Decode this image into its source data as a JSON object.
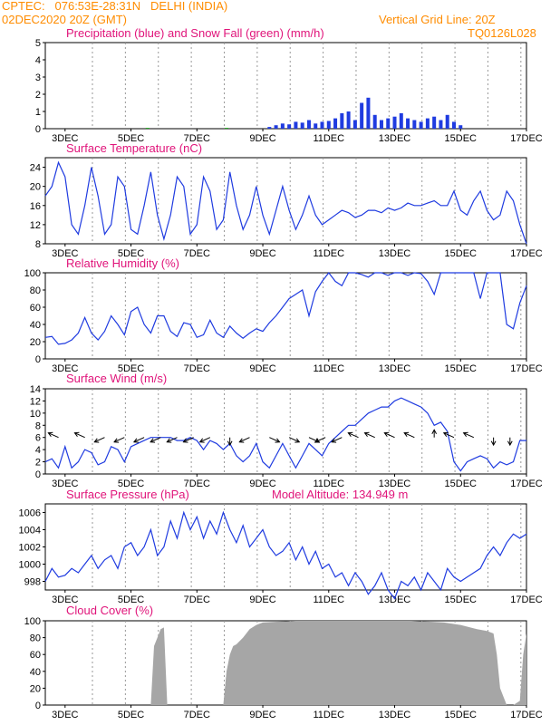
{
  "header": {
    "line1": "CPTEC:   076:53E-28:31N   DELHI (INDIA)",
    "line2": "02DEC2020 20Z (GMT)",
    "grid_note": "Vertical Grid Line: 20Z",
    "code": "TQ0126L028"
  },
  "colors": {
    "header": "#ff8c00",
    "title": "#e0147a",
    "series": "#1f3be0",
    "snow": "#22aa22",
    "cloud": "#a6a6a6",
    "wind_arrow": "#000000"
  },
  "x_tick_labels": [
    "3DEC",
    "5DEC",
    "7DEC",
    "9DEC",
    "11DEC",
    "13DEC",
    "15DEC",
    "17DEC"
  ],
  "chart_data": [
    {
      "type": "bar",
      "title": "Precipitation (blue) and Snow Fall (green) (mm/h)",
      "x_range_days": [
        2.4,
        17.0
      ],
      "ylim": [
        0,
        5
      ],
      "yticks": [
        0,
        1,
        2,
        3,
        4,
        5
      ],
      "series": [
        {
          "name": "Precipitation",
          "x": [
            9.2,
            9.4,
            9.6,
            9.8,
            10.0,
            10.2,
            10.4,
            10.6,
            10.8,
            11.0,
            11.2,
            11.4,
            11.6,
            11.8,
            12.0,
            12.2,
            12.4,
            12.6,
            12.8,
            13.0,
            13.2,
            13.4,
            13.6,
            13.8,
            14.0,
            14.2,
            14.4,
            14.6,
            14.8,
            15.0
          ],
          "values": [
            0.1,
            0.2,
            0.3,
            0.25,
            0.4,
            0.35,
            0.5,
            0.3,
            0.4,
            0.45,
            0.6,
            0.9,
            1.0,
            0.5,
            1.5,
            1.8,
            0.8,
            0.5,
            0.6,
            0.7,
            0.9,
            0.6,
            0.5,
            0.4,
            0.6,
            0.7,
            0.5,
            0.8,
            0.4,
            0.2
          ]
        },
        {
          "name": "Snow Fall",
          "x": [
            5.5,
            7.9
          ],
          "values": [
            0.05,
            0.05
          ]
        }
      ]
    },
    {
      "type": "line",
      "title": "Surface Temperature (nC)",
      "ylim": [
        8,
        26
      ],
      "yticks": [
        8,
        12,
        16,
        20,
        24
      ],
      "x": [
        2.4,
        2.6,
        2.8,
        3.0,
        3.2,
        3.4,
        3.6,
        3.8,
        4.0,
        4.2,
        4.4,
        4.6,
        4.8,
        5.0,
        5.2,
        5.4,
        5.6,
        5.8,
        6.0,
        6.2,
        6.4,
        6.6,
        6.8,
        7.0,
        7.2,
        7.4,
        7.6,
        7.8,
        8.0,
        8.2,
        8.4,
        8.6,
        8.8,
        9.0,
        9.2,
        9.4,
        9.6,
        9.8,
        10.0,
        10.2,
        10.4,
        10.6,
        10.8,
        11.0,
        11.2,
        11.4,
        11.6,
        11.8,
        12.0,
        12.2,
        12.4,
        12.6,
        12.8,
        13.0,
        13.2,
        13.4,
        13.6,
        13.8,
        14.0,
        14.2,
        14.4,
        14.6,
        14.8,
        15.0,
        15.2,
        15.4,
        15.6,
        15.8,
        16.0,
        16.2,
        16.4,
        16.6,
        16.8,
        17.0
      ],
      "values": [
        18,
        20,
        25,
        22,
        12,
        10,
        16,
        24,
        18,
        10,
        12,
        22,
        20,
        11,
        10,
        16,
        23,
        14,
        9,
        14,
        22,
        20,
        10,
        12,
        22,
        19,
        11,
        13,
        23,
        16,
        11,
        14,
        20,
        14,
        10,
        15,
        20,
        15,
        11,
        14,
        18,
        14,
        12,
        13,
        14,
        15,
        14.5,
        13.5,
        14,
        15,
        15,
        14.5,
        15.5,
        15,
        15.5,
        16.5,
        16,
        16,
        16.5,
        17,
        16,
        16,
        19,
        15,
        14,
        17,
        19,
        15,
        13,
        14,
        19,
        17,
        12,
        8
      ]
    },
    {
      "type": "line",
      "title": "Relative Humidity (%)",
      "ylim": [
        0,
        100
      ],
      "yticks": [
        0,
        20,
        40,
        60,
        80,
        100
      ],
      "x": [
        2.4,
        2.6,
        2.8,
        3.0,
        3.2,
        3.4,
        3.6,
        3.8,
        4.0,
        4.2,
        4.4,
        4.6,
        4.8,
        5.0,
        5.2,
        5.4,
        5.6,
        5.8,
        6.0,
        6.2,
        6.4,
        6.6,
        6.8,
        7.0,
        7.2,
        7.4,
        7.6,
        7.8,
        8.0,
        8.2,
        8.4,
        8.6,
        8.8,
        9.0,
        9.2,
        9.4,
        9.6,
        9.8,
        10.0,
        10.2,
        10.4,
        10.6,
        10.8,
        11.0,
        11.2,
        11.4,
        11.6,
        11.8,
        12.0,
        12.2,
        12.4,
        12.6,
        12.8,
        13.0,
        13.2,
        13.4,
        13.6,
        13.8,
        14.0,
        14.2,
        14.4,
        14.6,
        14.8,
        15.0,
        15.2,
        15.4,
        15.6,
        15.8,
        16.0,
        16.2,
        16.4,
        16.6,
        16.8,
        17.0
      ],
      "values": [
        25,
        26,
        17,
        18,
        22,
        30,
        48,
        30,
        22,
        32,
        50,
        40,
        28,
        55,
        60,
        40,
        30,
        50,
        50,
        32,
        26,
        42,
        40,
        25,
        28,
        45,
        30,
        25,
        38,
        30,
        24,
        30,
        35,
        32,
        42,
        50,
        60,
        70,
        75,
        80,
        50,
        78,
        90,
        100,
        90,
        85,
        100,
        100,
        98,
        95,
        100,
        100,
        97,
        100,
        100,
        97,
        100,
        99,
        90,
        75,
        100,
        100,
        100,
        100,
        100,
        100,
        70,
        100,
        100,
        100,
        40,
        35,
        65,
        85
      ]
    },
    {
      "type": "line",
      "title": "Surface Wind (m/s)",
      "ylim": [
        0,
        14
      ],
      "yticks": [
        0,
        2,
        4,
        6,
        8,
        10,
        12,
        14
      ],
      "x": [
        2.4,
        2.6,
        2.8,
        3.0,
        3.2,
        3.4,
        3.6,
        3.8,
        4.0,
        4.2,
        4.4,
        4.6,
        4.8,
        5.0,
        5.2,
        5.4,
        5.6,
        5.8,
        6.0,
        6.2,
        6.4,
        6.6,
        6.8,
        7.0,
        7.2,
        7.4,
        7.6,
        7.8,
        8.0,
        8.2,
        8.4,
        8.6,
        8.8,
        9.0,
        9.2,
        9.4,
        9.6,
        9.8,
        10.0,
        10.2,
        10.4,
        10.6,
        10.8,
        11.0,
        11.2,
        11.4,
        11.6,
        11.8,
        12.0,
        12.2,
        12.4,
        12.6,
        12.8,
        13.0,
        13.2,
        13.4,
        13.6,
        13.8,
        14.0,
        14.2,
        14.4,
        14.6,
        14.8,
        15.0,
        15.2,
        15.4,
        15.6,
        15.8,
        16.0,
        16.2,
        16.4,
        16.6,
        16.8,
        17.0
      ],
      "values": [
        2,
        2.5,
        1,
        4.5,
        1,
        2,
        4,
        3.5,
        1.5,
        2,
        4.5,
        4,
        2,
        4.5,
        5,
        5.5,
        6,
        6,
        6,
        6,
        5.5,
        5.5,
        6,
        5.5,
        4,
        5.5,
        5,
        4,
        5,
        3,
        2,
        3,
        5,
        2,
        1,
        3,
        5,
        3,
        1,
        3,
        5,
        4,
        3,
        5,
        6,
        7,
        8,
        8,
        9,
        10,
        10.5,
        11,
        11,
        12,
        12.5,
        12,
        11.5,
        11,
        10,
        8,
        8.5,
        7,
        2,
        0.5,
        2,
        2.5,
        3,
        2.5,
        1,
        2,
        1.5,
        2,
        5.5,
        5.5
      ],
      "wind_barbs": [
        {
          "x": 2.8,
          "dir": "nw"
        },
        {
          "x": 3.6,
          "dir": "nw"
        },
        {
          "x": 4.2,
          "dir": "sw"
        },
        {
          "x": 4.8,
          "dir": "sw"
        },
        {
          "x": 5.4,
          "dir": "sw"
        },
        {
          "x": 5.9,
          "dir": "sw"
        },
        {
          "x": 6.4,
          "dir": "sw"
        },
        {
          "x": 6.9,
          "dir": "sw"
        },
        {
          "x": 7.4,
          "dir": "sw"
        },
        {
          "x": 8.0,
          "dir": "s"
        },
        {
          "x": 8.6,
          "dir": "sw"
        },
        {
          "x": 9.2,
          "dir": "se"
        },
        {
          "x": 9.8,
          "dir": "se"
        },
        {
          "x": 10.4,
          "dir": "se"
        },
        {
          "x": 10.9,
          "dir": "sw"
        },
        {
          "x": 11.4,
          "dir": "sw"
        },
        {
          "x": 11.9,
          "dir": "nw"
        },
        {
          "x": 12.4,
          "dir": "nw"
        },
        {
          "x": 13.0,
          "dir": "nw"
        },
        {
          "x": 13.6,
          "dir": "nw"
        },
        {
          "x": 14.2,
          "dir": "n"
        },
        {
          "x": 14.8,
          "dir": "nw"
        },
        {
          "x": 15.4,
          "dir": "nw"
        },
        {
          "x": 16.0,
          "dir": "s"
        },
        {
          "x": 16.5,
          "dir": "s"
        }
      ]
    },
    {
      "type": "line",
      "title": "Surface Pressure (hPa)",
      "annotation": "Model Altitude: 134.949 m",
      "ylim": [
        997,
        1007
      ],
      "yticks": [
        998,
        1000,
        1002,
        1004,
        1006
      ],
      "x": [
        2.4,
        2.6,
        2.8,
        3.0,
        3.2,
        3.4,
        3.6,
        3.8,
        4.0,
        4.2,
        4.4,
        4.6,
        4.8,
        5.0,
        5.2,
        5.4,
        5.6,
        5.8,
        6.0,
        6.2,
        6.4,
        6.6,
        6.8,
        7.0,
        7.2,
        7.4,
        7.6,
        7.8,
        8.0,
        8.2,
        8.4,
        8.6,
        8.8,
        9.0,
        9.2,
        9.4,
        9.6,
        9.8,
        10.0,
        10.2,
        10.4,
        10.6,
        10.8,
        11.0,
        11.2,
        11.4,
        11.6,
        11.8,
        12.0,
        12.2,
        12.4,
        12.6,
        12.8,
        13.0,
        13.2,
        13.4,
        13.6,
        13.8,
        14.0,
        14.2,
        14.4,
        14.6,
        14.8,
        15.0,
        15.2,
        15.4,
        15.6,
        15.8,
        16.0,
        16.2,
        16.4,
        16.6,
        16.8,
        17.0
      ],
      "values": [
        998,
        999.5,
        998.5,
        998.7,
        999.5,
        999,
        1000,
        1001,
        999.5,
        1000.5,
        1001,
        999.5,
        1002,
        1002.5,
        1001,
        1002,
        1004,
        1001,
        1002,
        1005,
        1003,
        1006,
        1004,
        1005.5,
        1003,
        1005,
        1003.5,
        1006,
        1004,
        1002.5,
        1004.5,
        1002,
        1003,
        1004,
        1002,
        1001,
        1001.5,
        1002.5,
        1000.5,
        1002,
        1000,
        1001.5,
        999.5,
        1000,
        998.5,
        999,
        997.5,
        999,
        998,
        996.5,
        997.5,
        999,
        997,
        996,
        998,
        997.5,
        998.5,
        997,
        999,
        998,
        997,
        999.5,
        998.5,
        998,
        998.5,
        999,
        999.5,
        1001,
        1002,
        1001,
        1002.5,
        1003.5,
        1003,
        1003.5
      ]
    },
    {
      "type": "area",
      "title": "Cloud Cover (%)",
      "ylim": [
        0,
        100
      ],
      "yticks": [
        0,
        20,
        40,
        60,
        80,
        100
      ],
      "x": [
        2.4,
        5.5,
        5.6,
        5.7,
        5.8,
        5.9,
        6.0,
        6.1,
        6.2,
        7.8,
        7.9,
        8.0,
        8.1,
        8.2,
        8.4,
        8.6,
        8.8,
        9.0,
        9.5,
        10.0,
        11.0,
        12.0,
        13.0,
        13.5,
        14.0,
        14.5,
        15.0,
        15.5,
        15.8,
        16.0,
        16.1,
        16.2,
        16.4,
        16.6,
        16.8,
        16.9,
        17.0
      ],
      "values": [
        0,
        0,
        0,
        70,
        80,
        90,
        92,
        0,
        0,
        0,
        40,
        60,
        70,
        72,
        80,
        90,
        95,
        98,
        99,
        100,
        100,
        100,
        100,
        100,
        99,
        98,
        95,
        90,
        88,
        85,
        60,
        20,
        0,
        0,
        5,
        60,
        85
      ]
    }
  ]
}
